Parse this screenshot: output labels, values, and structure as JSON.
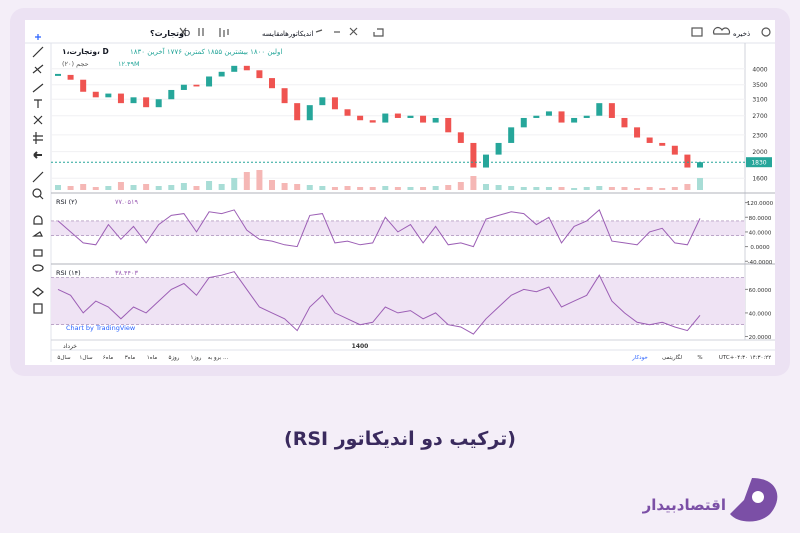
{
  "toolbar": {
    "symbol": "وتجارت؟",
    "interval": "D",
    "compare": "مقایسه",
    "indicators": "اندیکاتورها",
    "save": "ذخیره"
  },
  "legend": {
    "name": "وتجارت،۱، D",
    "ohlc": "اولین ۱۸۰۰ بیشترین ۱۸۵۵ کمترین ۱۷۷۶ آخرین ۱۸۳۰",
    "volume_label": "حجم (۲۰)",
    "volume_value": "۱۲.۴۹M"
  },
  "chart_data": [
    {
      "type": "candlestick",
      "log": true,
      "ylim": [
        1450,
        4800
      ],
      "yticks": [
        4000,
        3500,
        3100,
        2700,
        2300,
        2000,
        1600
      ],
      "last_label": "1830",
      "values": [
        3800,
        3650,
        3300,
        3150,
        3250,
        3000,
        3150,
        2900,
        3100,
        3350,
        3500,
        3450,
        3750,
        3900,
        4100,
        3950,
        3700,
        3400,
        3000,
        2600,
        2950,
        3150,
        2850,
        2700,
        2600,
        2550,
        2750,
        2650,
        2700,
        2550,
        2650,
        2350,
        2150,
        1750,
        1950,
        2150,
        2450,
        2650,
        2700,
        2800,
        2550,
        2650,
        2700,
        3000,
        2650,
        2450,
        2250,
        2150,
        2100,
        1950,
        1750,
        1830
      ],
      "volume": {
        "ylim": [
          0,
          40
        ],
        "values": [
          5,
          4,
          6,
          3,
          4,
          8,
          5,
          6,
          4,
          5,
          7,
          4,
          9,
          6,
          12,
          18,
          20,
          10,
          7,
          6,
          5,
          4,
          3,
          4,
          3,
          3,
          4,
          3,
          3,
          3,
          4,
          5,
          8,
          14,
          6,
          5,
          4,
          3,
          3,
          3,
          3,
          2,
          3,
          4,
          3,
          3,
          2,
          3,
          2,
          3,
          6,
          12
        ]
      }
    },
    {
      "type": "line",
      "title": "RSI (۲)",
      "legend_value": "۷۷.۰۵۱۹",
      "color": "#9c5fb5",
      "band": [
        30,
        70
      ],
      "ylim": [
        -42,
        138
      ],
      "yticks": [
        {
          "value": 120,
          "label": "120.0000"
        },
        {
          "value": 80,
          "label": "80.0000"
        },
        {
          "value": 40,
          "label": "40.0000"
        },
        {
          "value": 0,
          "label": "0.0000"
        },
        {
          "value": -40,
          "label": "-40.0000"
        }
      ],
      "values": [
        70,
        40,
        10,
        5,
        60,
        20,
        55,
        10,
        60,
        85,
        90,
        40,
        95,
        90,
        100,
        45,
        20,
        15,
        5,
        0,
        85,
        90,
        10,
        15,
        5,
        10,
        80,
        40,
        60,
        10,
        55,
        5,
        10,
        0,
        75,
        85,
        95,
        90,
        60,
        80,
        10,
        55,
        70,
        100,
        15,
        10,
        5,
        40,
        50,
        10,
        5,
        77
      ]
    },
    {
      "type": "line",
      "title": "RSI (۱۴)",
      "legend_value": "۳۸.۴۴۰۳",
      "color": "#9c5fb5",
      "band": [
        30,
        70
      ],
      "ylim": [
        17,
        79
      ],
      "yticks": [
        {
          "value": 60,
          "label": "60.0000"
        },
        {
          "value": 40,
          "label": "40.0000"
        },
        {
          "value": 20,
          "label": "20.0000"
        }
      ],
      "values": [
        60,
        55,
        40,
        50,
        45,
        35,
        45,
        40,
        50,
        60,
        65,
        55,
        70,
        72,
        75,
        60,
        45,
        40,
        35,
        25,
        45,
        55,
        40,
        35,
        30,
        32,
        45,
        40,
        42,
        35,
        40,
        30,
        28,
        22,
        35,
        45,
        55,
        60,
        58,
        62,
        45,
        50,
        55,
        72,
        50,
        40,
        32,
        30,
        32,
        28,
        25,
        38
      ]
    }
  ],
  "time_axis": [
    "خرداد",
    "1400"
  ],
  "watermark": "Chart by TradingView",
  "bottom_bar": {
    "ranges": [
      "۵سال",
      "۱سال",
      "۶ماه",
      "۳ماه",
      "۱ماه",
      "۵روز",
      "۱روز",
      "برو به ..."
    ],
    "right": [
      "UTC+۰۴:۳۰ ۱۴:۳۰:۲۲",
      "%",
      "لگاریتمی",
      "خودکار"
    ]
  },
  "caption": "(ترکیب دو اندیکاتور RSI)",
  "logo": "اقتصادبیدار"
}
